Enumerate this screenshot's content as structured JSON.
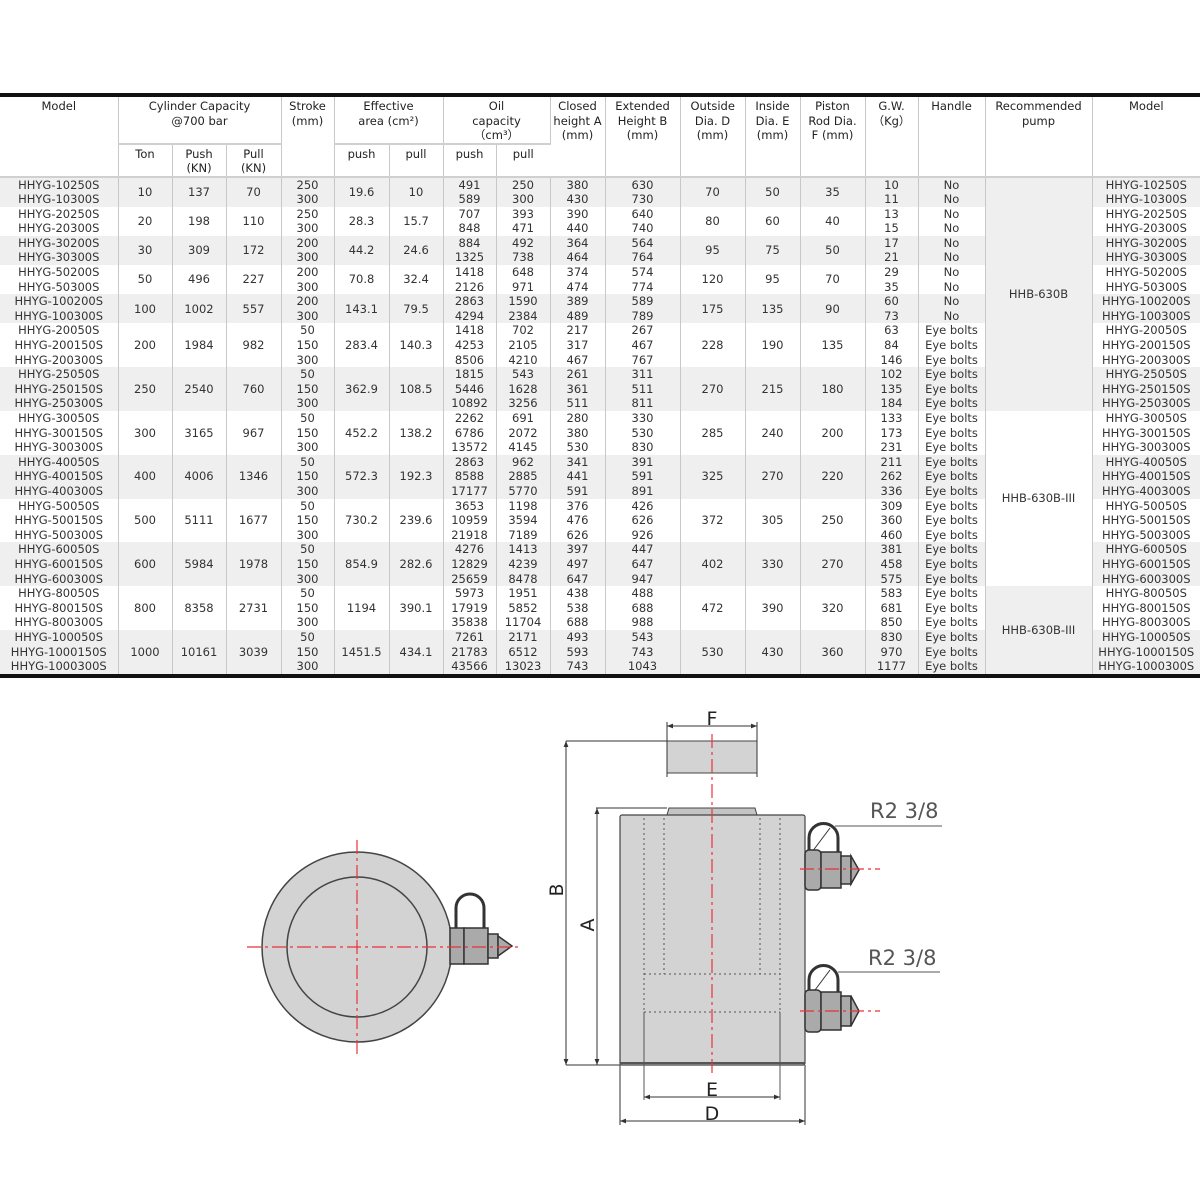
{
  "table": {
    "headers": {
      "model": "Model",
      "cylinder_capacity": "Cylinder Capacity @700 bar",
      "ton": "Ton",
      "push_kn": "Push (KN)",
      "pull_kn": "Pull (KN)",
      "stroke": "Stroke (mm)",
      "effective_area": "Effective area (cm²)",
      "ea_push": "push",
      "ea_pull": "pull",
      "oil_capacity": "Oil capacity （cm³）",
      "oil_push": "push",
      "oil_pull": "pull",
      "closed_height": "Closed height A (mm)",
      "extended_height": "Extended Height B (mm)",
      "outside_dia": "Outside Dia. D (mm)",
      "inside_dia": "Inside Dia. E (mm)",
      "piston_rod_dia": "Piston Rod Dia. F (mm)",
      "gw": "G.W. （Kg）",
      "handle": "Handle",
      "recommended_pump": "Recommended pump",
      "model_right": "Model"
    },
    "groups": [
      {
        "ton": "10",
        "push": "137",
        "pull": "70",
        "ea_push": "19.6",
        "ea_pull": "10",
        "outside": "70",
        "inside": "50",
        "rod": "35",
        "rows": [
          {
            "model": "HHYG-10250S",
            "stroke": "250",
            "oil_push": "491",
            "oil_pull": "250",
            "closed": "380",
            "extended": "630",
            "gw": "10",
            "handle": "No"
          },
          {
            "model": "HHYG-10300S",
            "stroke": "300",
            "oil_push": "589",
            "oil_pull": "300",
            "closed": "430",
            "extended": "730",
            "gw": "11",
            "handle": "No"
          }
        ]
      },
      {
        "ton": "20",
        "push": "198",
        "pull": "110",
        "ea_push": "28.3",
        "ea_pull": "15.7",
        "outside": "80",
        "inside": "60",
        "rod": "40",
        "rows": [
          {
            "model": "HHYG-20250S",
            "stroke": "250",
            "oil_push": "707",
            "oil_pull": "393",
            "closed": "390",
            "extended": "640",
            "gw": "13",
            "handle": "No"
          },
          {
            "model": "HHYG-20300S",
            "stroke": "300",
            "oil_push": "848",
            "oil_pull": "471",
            "closed": "440",
            "extended": "740",
            "gw": "15",
            "handle": "No"
          }
        ]
      },
      {
        "ton": "30",
        "push": "309",
        "pull": "172",
        "ea_push": "44.2",
        "ea_pull": "24.6",
        "outside": "95",
        "inside": "75",
        "rod": "50",
        "rows": [
          {
            "model": "HHYG-30200S",
            "stroke": "200",
            "oil_push": "884",
            "oil_pull": "492",
            "closed": "364",
            "extended": "564",
            "gw": "17",
            "handle": "No"
          },
          {
            "model": "HHYG-30300S",
            "stroke": "300",
            "oil_push": "1325",
            "oil_pull": "738",
            "closed": "464",
            "extended": "764",
            "gw": "21",
            "handle": "No"
          }
        ]
      },
      {
        "ton": "50",
        "push": "496",
        "pull": "227",
        "ea_push": "70.8",
        "ea_pull": "32.4",
        "outside": "120",
        "inside": "95",
        "rod": "70",
        "rows": [
          {
            "model": "HHYG-50200S",
            "stroke": "200",
            "oil_push": "1418",
            "oil_pull": "648",
            "closed": "374",
            "extended": "574",
            "gw": "29",
            "handle": "No"
          },
          {
            "model": "HHYG-50300S",
            "stroke": "300",
            "oil_push": "2126",
            "oil_pull": "971",
            "closed": "474",
            "extended": "774",
            "gw": "35",
            "handle": "No"
          }
        ]
      },
      {
        "ton": "100",
        "push": "1002",
        "pull": "557",
        "ea_push": "143.1",
        "ea_pull": "79.5",
        "outside": "175",
        "inside": "135",
        "rod": "90",
        "rows": [
          {
            "model": "HHYG-100200S",
            "stroke": "200",
            "oil_push": "2863",
            "oil_pull": "1590",
            "closed": "389",
            "extended": "589",
            "gw": "60",
            "handle": "No"
          },
          {
            "model": "HHYG-100300S",
            "stroke": "300",
            "oil_push": "4294",
            "oil_pull": "2384",
            "closed": "489",
            "extended": "789",
            "gw": "73",
            "handle": "No"
          }
        ]
      },
      {
        "ton": "200",
        "push": "1984",
        "pull": "982",
        "ea_push": "283.4",
        "ea_pull": "140.3",
        "outside": "228",
        "inside": "190",
        "rod": "135",
        "rows": [
          {
            "model": "HHYG-20050S",
            "stroke": "50",
            "oil_push": "1418",
            "oil_pull": "702",
            "closed": "217",
            "extended": "267",
            "gw": "63",
            "handle": "Eye bolts"
          },
          {
            "model": "HHYG-200150S",
            "stroke": "150",
            "oil_push": "4253",
            "oil_pull": "2105",
            "closed": "317",
            "extended": "467",
            "gw": "84",
            "handle": "Eye bolts"
          },
          {
            "model": "HHYG-200300S",
            "stroke": "300",
            "oil_push": "8506",
            "oil_pull": "4210",
            "closed": "467",
            "extended": "767",
            "gw": "146",
            "handle": "Eye bolts"
          }
        ]
      },
      {
        "ton": "250",
        "push": "2540",
        "pull": "760",
        "ea_push": "362.9",
        "ea_pull": "108.5",
        "outside": "270",
        "inside": "215",
        "rod": "180",
        "rows": [
          {
            "model": "HHYG-25050S",
            "stroke": "50",
            "oil_push": "1815",
            "oil_pull": "543",
            "closed": "261",
            "extended": "311",
            "gw": "102",
            "handle": "Eye bolts"
          },
          {
            "model": "HHYG-250150S",
            "stroke": "150",
            "oil_push": "5446",
            "oil_pull": "1628",
            "closed": "361",
            "extended": "511",
            "gw": "135",
            "handle": "Eye bolts"
          },
          {
            "model": "HHYG-250300S",
            "stroke": "300",
            "oil_push": "10892",
            "oil_pull": "3256",
            "closed": "511",
            "extended": "811",
            "gw": "184",
            "handle": "Eye bolts"
          }
        ]
      },
      {
        "ton": "300",
        "push": "3165",
        "pull": "967",
        "ea_push": "452.2",
        "ea_pull": "138.2",
        "outside": "285",
        "inside": "240",
        "rod": "200",
        "rows": [
          {
            "model": "HHYG-30050S",
            "stroke": "50",
            "oil_push": "2262",
            "oil_pull": "691",
            "closed": "280",
            "extended": "330",
            "gw": "133",
            "handle": "Eye bolts"
          },
          {
            "model": "HHYG-300150S",
            "stroke": "150",
            "oil_push": "6786",
            "oil_pull": "2072",
            "closed": "380",
            "extended": "530",
            "gw": "173",
            "handle": "Eye bolts"
          },
          {
            "model": "HHYG-300300S",
            "stroke": "300",
            "oil_push": "13572",
            "oil_pull": "4145",
            "closed": "530",
            "extended": "830",
            "gw": "231",
            "handle": "Eye bolts"
          }
        ]
      },
      {
        "ton": "400",
        "push": "4006",
        "pull": "1346",
        "ea_push": "572.3",
        "ea_pull": "192.3",
        "outside": "325",
        "inside": "270",
        "rod": "220",
        "rows": [
          {
            "model": "HHYG-40050S",
            "stroke": "50",
            "oil_push": "2863",
            "oil_pull": "962",
            "closed": "341",
            "extended": "391",
            "gw": "211",
            "handle": "Eye bolts"
          },
          {
            "model": "HHYG-400150S",
            "stroke": "150",
            "oil_push": "8588",
            "oil_pull": "2885",
            "closed": "441",
            "extended": "591",
            "gw": "262",
            "handle": "Eye bolts"
          },
          {
            "model": "HHYG-400300S",
            "stroke": "300",
            "oil_push": "17177",
            "oil_pull": "5770",
            "closed": "591",
            "extended": "891",
            "gw": "336",
            "handle": "Eye bolts"
          }
        ]
      },
      {
        "ton": "500",
        "push": "5111",
        "pull": "1677",
        "ea_push": "730.2",
        "ea_pull": "239.6",
        "outside": "372",
        "inside": "305",
        "rod": "250",
        "rows": [
          {
            "model": "HHYG-50050S",
            "stroke": "50",
            "oil_push": "3653",
            "oil_pull": "1198",
            "closed": "376",
            "extended": "426",
            "gw": "309",
            "handle": "Eye bolts"
          },
          {
            "model": "HHYG-500150S",
            "stroke": "150",
            "oil_push": "10959",
            "oil_pull": "3594",
            "closed": "476",
            "extended": "626",
            "gw": "360",
            "handle": "Eye bolts"
          },
          {
            "model": "HHYG-500300S",
            "stroke": "300",
            "oil_push": "21918",
            "oil_pull": "7189",
            "closed": "626",
            "extended": "926",
            "gw": "460",
            "handle": "Eye bolts"
          }
        ]
      },
      {
        "ton": "600",
        "push": "5984",
        "pull": "1978",
        "ea_push": "854.9",
        "ea_pull": "282.6",
        "outside": "402",
        "inside": "330",
        "rod": "270",
        "rows": [
          {
            "model": "HHYG-60050S",
            "stroke": "50",
            "oil_push": "4276",
            "oil_pull": "1413",
            "closed": "397",
            "extended": "447",
            "gw": "381",
            "handle": "Eye bolts"
          },
          {
            "model": "HHYG-600150S",
            "stroke": "150",
            "oil_push": "12829",
            "oil_pull": "4239",
            "closed": "497",
            "extended": "647",
            "gw": "458",
            "handle": "Eye bolts"
          },
          {
            "model": "HHYG-600300S",
            "stroke": "300",
            "oil_push": "25659",
            "oil_pull": "8478",
            "closed": "647",
            "extended": "947",
            "gw": "575",
            "handle": "Eye bolts"
          }
        ]
      },
      {
        "ton": "800",
        "push": "8358",
        "pull": "2731",
        "ea_push": "1194",
        "ea_pull": "390.1",
        "outside": "472",
        "inside": "390",
        "rod": "320",
        "rows": [
          {
            "model": "HHYG-80050S",
            "stroke": "50",
            "oil_push": "5973",
            "oil_pull": "1951",
            "closed": "438",
            "extended": "488",
            "gw": "583",
            "handle": "Eye bolts"
          },
          {
            "model": "HHYG-800150S",
            "stroke": "150",
            "oil_push": "17919",
            "oil_pull": "5852",
            "closed": "538",
            "extended": "688",
            "gw": "681",
            "handle": "Eye bolts"
          },
          {
            "model": "HHYG-800300S",
            "stroke": "300",
            "oil_push": "35838",
            "oil_pull": "11704",
            "closed": "688",
            "extended": "988",
            "gw": "850",
            "handle": "Eye bolts"
          }
        ]
      },
      {
        "ton": "1000",
        "push": "10161",
        "pull": "3039",
        "ea_push": "1451.5",
        "ea_pull": "434.1",
        "outside": "530",
        "inside": "430",
        "rod": "360",
        "rows": [
          {
            "model": "HHYG-100050S",
            "stroke": "50",
            "oil_push": "7261",
            "oil_pull": "2171",
            "closed": "493",
            "extended": "543",
            "gw": "830",
            "handle": "Eye bolts"
          },
          {
            "model": "HHYG-1000150S",
            "stroke": "150",
            "oil_push": "21783",
            "oil_pull": "6512",
            "closed": "593",
            "extended": "743",
            "gw": "970",
            "handle": "Eye bolts"
          },
          {
            "model": "HHYG-1000300S",
            "stroke": "300",
            "oil_push": "43566",
            "oil_pull": "13023",
            "closed": "743",
            "extended": "1043",
            "gw": "1177",
            "handle": "Eye bolts"
          }
        ]
      }
    ],
    "recommended_pumps": [
      {
        "label": "HHB-630B",
        "groups": 7,
        "shade": "gray"
      },
      {
        "label": "HHB-630B-III",
        "groups": 4,
        "shade": "white"
      },
      {
        "label": "HHB-630B-III",
        "groups": 2,
        "shade": "gray"
      }
    ]
  },
  "drawing": {
    "label_f": "F",
    "label_b": "B",
    "label_a": "A",
    "label_e": "E",
    "label_d": "D",
    "port_label_top": "R2 3/8",
    "port_label_bottom": "R2 3/8",
    "centerline_color": "#e8323c",
    "body_color": "#d3d3d3"
  }
}
